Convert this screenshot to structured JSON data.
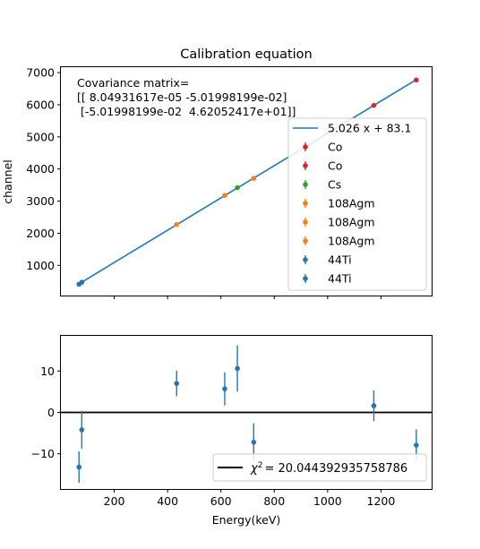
{
  "chart_data": [
    {
      "type": "scatter",
      "title": "Calibration equation",
      "xlabel": "",
      "ylabel": "channel",
      "xlim": [
        0,
        1390
      ],
      "ylim": [
        60,
        7170
      ],
      "xticks": [
        200,
        400,
        600,
        800,
        1000,
        1200
      ],
      "yticks": [
        1000,
        2000,
        3000,
        4000,
        5000,
        6000,
        7000
      ],
      "annotation": [
        "Covariance matrix=",
        "[[ 8.04931617e-05 -5.01998199e-02]",
        " [-5.01998199e-02  4.62052417e+01]]"
      ],
      "fit": {
        "label": "5.026 x + 83.1",
        "slope": 5.026,
        "intercept": 83.1,
        "color": "#1f77b4"
      },
      "legend_location": "center-right",
      "series": [
        {
          "name": "Co",
          "color": "#d62728",
          "x": [
            1332.5
          ],
          "y": [
            6771
          ]
        },
        {
          "name": "Co",
          "color": "#d62728",
          "x": [
            1173.2
          ],
          "y": [
            5980
          ]
        },
        {
          "name": "Cs",
          "color": "#2ca02c",
          "x": [
            661.7
          ],
          "y": [
            3420
          ]
        },
        {
          "name": "108Agm",
          "color": "#ff7f0e",
          "x": [
            722.9
          ],
          "y": [
            3710
          ]
        },
        {
          "name": "108Agm",
          "color": "#ff7f0e",
          "x": [
            614.3
          ],
          "y": [
            3178
          ]
        },
        {
          "name": "108Agm",
          "color": "#ff7f0e",
          "x": [
            433.9
          ],
          "y": [
            2271
          ]
        },
        {
          "name": "44Ti",
          "color": "#1f77b4",
          "x": [
            78.3
          ],
          "y": [
            473
          ]
        },
        {
          "name": "44Ti",
          "color": "#1f77b4",
          "x": [
            67.9
          ],
          "y": [
            411
          ]
        }
      ]
    },
    {
      "type": "scatter",
      "title": "",
      "xlabel": "Energy(keV)",
      "ylabel": "",
      "xlim": [
        0,
        1390
      ],
      "ylim": [
        -18.5,
        18.5
      ],
      "xticks": [
        200,
        400,
        600,
        800,
        1000,
        1200
      ],
      "yticks": [
        -10,
        0,
        10
      ],
      "zero_line": true,
      "legend": {
        "label": "χ² = 20.044392935758786",
        "symbol": "χ",
        "superscript": "2",
        "value": "= 20.044392935758786",
        "location": "lower-right"
      },
      "color": "#1f77b4",
      "points": [
        {
          "x": 67.9,
          "y": -13.2,
          "err": 3.8
        },
        {
          "x": 78.3,
          "y": -4.2,
          "err": 4.6
        },
        {
          "x": 433.9,
          "y": 7.0,
          "err": 3.1
        },
        {
          "x": 614.3,
          "y": 5.7,
          "err": 4.0
        },
        {
          "x": 661.7,
          "y": 10.6,
          "err": 5.6
        },
        {
          "x": 722.9,
          "y": -7.2,
          "err": 4.6
        },
        {
          "x": 1173.2,
          "y": 1.6,
          "err": 3.7
        },
        {
          "x": 1332.5,
          "y": -7.9,
          "err": 3.8
        }
      ]
    }
  ]
}
